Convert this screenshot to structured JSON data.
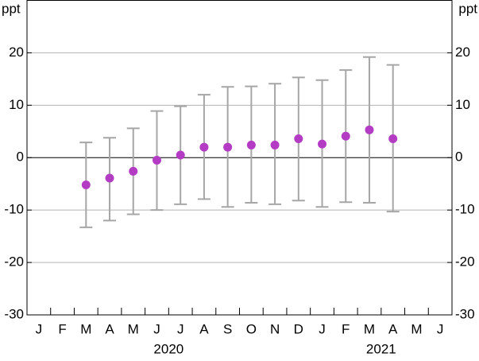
{
  "chart_data": {
    "type": "errorbar",
    "unit": "ppt",
    "categories": [
      "J",
      "F",
      "M",
      "A",
      "M",
      "J",
      "J",
      "A",
      "S",
      "O",
      "N",
      "D",
      "J",
      "F",
      "M",
      "A",
      "M",
      "J"
    ],
    "years": [
      "2020",
      "2021"
    ],
    "values": [
      null,
      null,
      -5.2,
      -3.9,
      -2.6,
      -0.5,
      0.5,
      2.0,
      2.0,
      2.4,
      2.4,
      3.6,
      2.6,
      4.1,
      5.3,
      3.6,
      null,
      null
    ],
    "low": [
      null,
      null,
      -13.3,
      -12.0,
      -10.8,
      -10.0,
      -8.9,
      -7.9,
      -9.4,
      -8.6,
      -8.9,
      -8.2,
      -9.4,
      -8.5,
      -8.6,
      -10.3,
      null,
      null
    ],
    "high": [
      null,
      null,
      2.9,
      3.8,
      5.6,
      8.9,
      9.8,
      12.0,
      13.5,
      13.6,
      14.1,
      15.3,
      14.8,
      16.7,
      19.2,
      17.7,
      null,
      null
    ],
    "color": "#b43cc4",
    "error_color": "#a6a6a6",
    "ylim": [
      -30,
      30
    ],
    "yticks": [
      -30,
      -20,
      -10,
      0,
      10,
      20
    ],
    "grid": true
  }
}
